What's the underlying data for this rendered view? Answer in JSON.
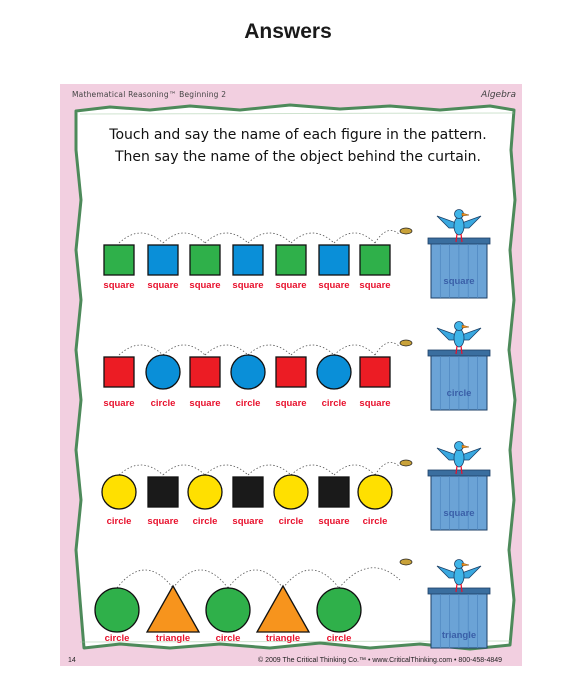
{
  "page_title": "Answers",
  "header": {
    "series": "Mathematical Reasoning™ Beginning 2",
    "section": "Algebra"
  },
  "instructions": [
    "Touch and say the name of each figure in the pattern.",
    "Then say the name of the object behind the curtain."
  ],
  "colors": {
    "sheet_pink": "#f2cfe0",
    "border_green": "#4d8a5a",
    "label_red": "#e8112d",
    "shape_green": "#2fb04a",
    "shape_blue": "#0a8fd8",
    "shape_red": "#ec1c24",
    "shape_yellow": "#ffe000",
    "shape_black": "#1a1a1a",
    "shape_orange": "#f7941d",
    "curtain_blue": "#6ba3d6"
  },
  "rows": [
    {
      "shapes": [
        {
          "kind": "square",
          "color": "#2fb04a",
          "label": "square"
        },
        {
          "kind": "square",
          "color": "#0a8fd8",
          "label": "square"
        },
        {
          "kind": "square",
          "color": "#2fb04a",
          "label": "square"
        },
        {
          "kind": "square",
          "color": "#0a8fd8",
          "label": "square"
        },
        {
          "kind": "square",
          "color": "#2fb04a",
          "label": "square"
        },
        {
          "kind": "square",
          "color": "#0a8fd8",
          "label": "square"
        },
        {
          "kind": "square",
          "color": "#2fb04a",
          "label": "square"
        }
      ],
      "answer": "square"
    },
    {
      "shapes": [
        {
          "kind": "square",
          "color": "#ec1c24",
          "label": "square"
        },
        {
          "kind": "circle",
          "color": "#0a8fd8",
          "label": "circle"
        },
        {
          "kind": "square",
          "color": "#ec1c24",
          "label": "square"
        },
        {
          "kind": "circle",
          "color": "#0a8fd8",
          "label": "circle"
        },
        {
          "kind": "square",
          "color": "#ec1c24",
          "label": "square"
        },
        {
          "kind": "circle",
          "color": "#0a8fd8",
          "label": "circle"
        },
        {
          "kind": "square",
          "color": "#ec1c24",
          "label": "square"
        }
      ],
      "answer": "circle"
    },
    {
      "shapes": [
        {
          "kind": "circle",
          "color": "#ffe000",
          "label": "circle"
        },
        {
          "kind": "square",
          "color": "#1a1a1a",
          "label": "square"
        },
        {
          "kind": "circle",
          "color": "#ffe000",
          "label": "circle"
        },
        {
          "kind": "square",
          "color": "#1a1a1a",
          "label": "square"
        },
        {
          "kind": "circle",
          "color": "#ffe000",
          "label": "circle"
        },
        {
          "kind": "square",
          "color": "#1a1a1a",
          "label": "square"
        },
        {
          "kind": "circle",
          "color": "#ffe000",
          "label": "circle"
        }
      ],
      "answer": "square"
    },
    {
      "shapes": [
        {
          "kind": "circle",
          "color": "#2fb04a",
          "label": "circle"
        },
        {
          "kind": "triangle",
          "color": "#f7941d",
          "label": "triangle"
        },
        {
          "kind": "circle",
          "color": "#2fb04a",
          "label": "circle"
        },
        {
          "kind": "triangle",
          "color": "#f7941d",
          "label": "triangle"
        },
        {
          "kind": "circle",
          "color": "#2fb04a",
          "label": "circle"
        }
      ],
      "answer": "triangle"
    }
  ],
  "footer": {
    "page_number": "14",
    "copyright": "© 2009 The Critical Thinking Co.™ • www.CriticalThinking.com • 800-458-4849"
  }
}
